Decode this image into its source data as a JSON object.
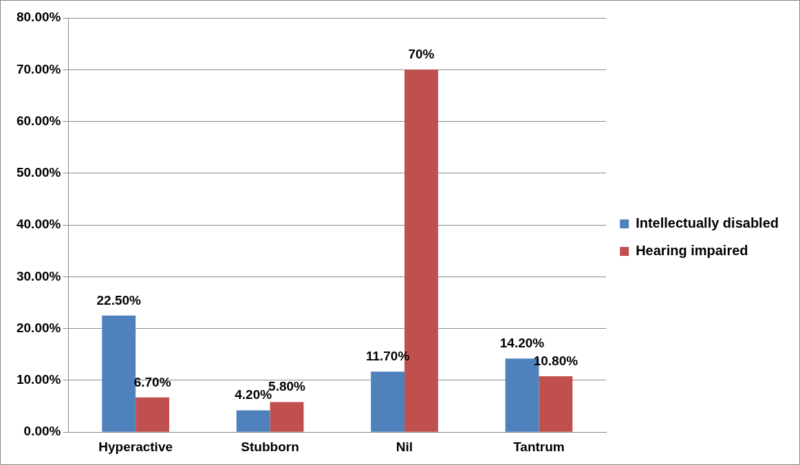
{
  "chart_data": {
    "type": "bar",
    "categories": [
      "Hyperactive",
      "Stubborn",
      "Nil",
      "Tantrum"
    ],
    "series": [
      {
        "name": "Intellectually disabled",
        "color": "#4f81bd",
        "values": [
          22.5,
          4.2,
          11.7,
          14.2
        ],
        "value_labels": [
          "22.50%",
          "4.20%",
          "11.70%",
          "14.20%"
        ]
      },
      {
        "name": "Hearing impaired",
        "color": "#c0504d",
        "values": [
          6.7,
          5.8,
          70,
          10.8
        ],
        "value_labels": [
          "6.70%",
          "5.80%",
          "70%",
          "10.80%"
        ]
      }
    ],
    "ylim": [
      0,
      80
    ],
    "yticks": [
      {
        "value": 0,
        "label": "0.00%"
      },
      {
        "value": 10,
        "label": "10.00%"
      },
      {
        "value": 20,
        "label": "20.00%"
      },
      {
        "value": 30,
        "label": "30.00%"
      },
      {
        "value": 40,
        "label": "40.00%"
      },
      {
        "value": 50,
        "label": "50.00%"
      },
      {
        "value": 60,
        "label": "60.00%"
      },
      {
        "value": 70,
        "label": "70.00%"
      },
      {
        "value": 80,
        "label": "80.00%"
      }
    ],
    "grid": "y",
    "legend": "right"
  }
}
